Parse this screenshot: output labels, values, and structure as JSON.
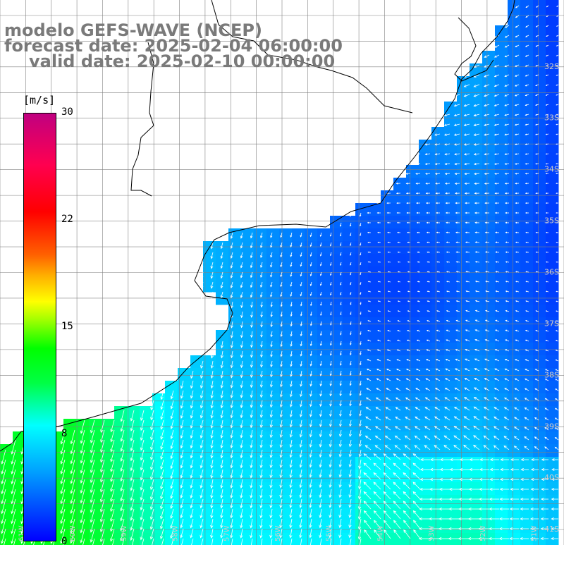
{
  "title": {
    "line1": "modelo GEFS-WAVE (NCEP)",
    "line2": "forecast date: 2025-02-04 06:00:00",
    "line3": "valid date: 2025-02-10 00:00:00"
  },
  "colorbar": {
    "unit": "[m/s]",
    "ticks": [
      "30",
      "22",
      "15",
      "8",
      "0"
    ],
    "colors": [
      "#0000ff",
      "#00ffff",
      "#00ff00",
      "#ffff00",
      "#ff0000",
      "#c00080"
    ]
  },
  "lat_labels": [
    "32S",
    "33S",
    "34S",
    "35S",
    "36S",
    "37S",
    "38S",
    "39S",
    "40S",
    "41S"
  ],
  "lon_labels": [
    "61W",
    "60W",
    "59W",
    "58W",
    "57W",
    "56W",
    "55W",
    "54W",
    "53W",
    "52W",
    "51W"
  ],
  "map_extent": {
    "lon": [
      -61.5,
      -50.5
    ],
    "lat": [
      -41.3,
      -30.7
    ]
  }
}
